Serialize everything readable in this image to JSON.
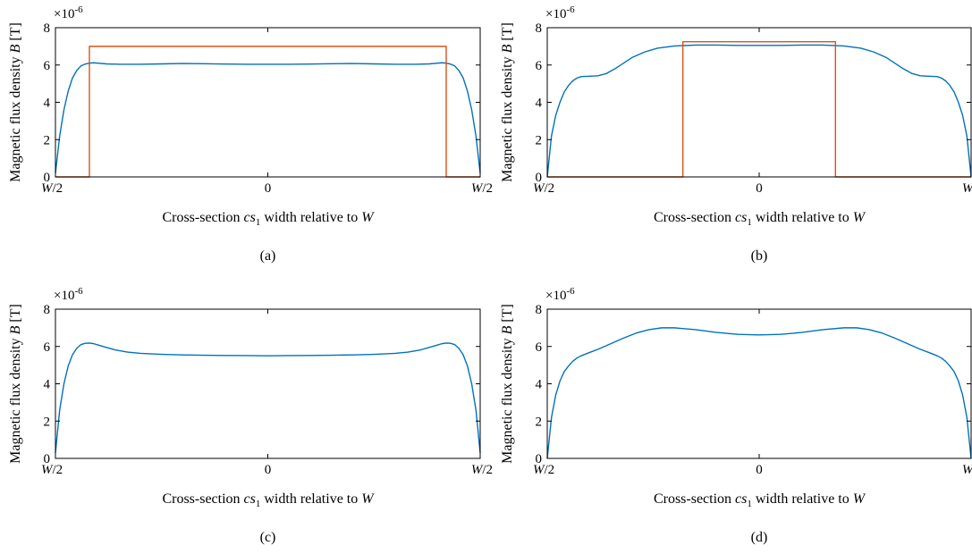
{
  "common": {
    "ylabel_main": "Magnetic flux density ",
    "ylabel_var": "B",
    "ylabel_unit": " [T]",
    "xlabel_pre": "Cross-section ",
    "xlabel_var": "cs",
    "xlabel_sub": "1",
    "xlabel_post": " width relative to ",
    "xlabel_W": "W",
    "exp_base": "×10",
    "exp_power": "-6",
    "xtick_left": "W/2",
    "xtick_mid": "0",
    "xtick_right": "W/2",
    "yticks": [
      "0",
      "2",
      "4",
      "6",
      "8"
    ]
  },
  "colors": {
    "series1": "#0072bd",
    "series2": "#d95319"
  },
  "chart_data": [
    {
      "type": "line",
      "caption": "(a)",
      "xlim": [
        -0.5,
        0.5
      ],
      "ylim": [
        0,
        8
      ],
      "series": [
        {
          "color": "#0072bd",
          "x": [
            -0.5,
            -0.49,
            -0.48,
            -0.47,
            -0.46,
            -0.45,
            -0.44,
            -0.43,
            -0.42,
            -0.41,
            -0.4,
            -0.38,
            -0.35,
            -0.3,
            -0.25,
            -0.2,
            -0.15,
            -0.1,
            -0.05,
            0,
            0.05,
            0.1,
            0.15,
            0.2,
            0.25,
            0.3,
            0.35,
            0.38,
            0.4,
            0.41,
            0.42,
            0.43,
            0.44,
            0.45,
            0.46,
            0.47,
            0.48,
            0.49,
            0.5
          ],
          "y": [
            0.2,
            2.2,
            3.6,
            4.6,
            5.3,
            5.7,
            5.95,
            6.05,
            6.1,
            6.12,
            6.1,
            6.06,
            6.04,
            6.04,
            6.06,
            6.08,
            6.07,
            6.05,
            6.04,
            6.04,
            6.04,
            6.05,
            6.07,
            6.08,
            6.06,
            6.04,
            6.04,
            6.06,
            6.1,
            6.12,
            6.1,
            6.05,
            5.95,
            5.7,
            5.3,
            4.6,
            3.6,
            2.2,
            0.2
          ]
        },
        {
          "color": "#d95319",
          "x": [
            -0.5,
            -0.42,
            -0.42,
            0.42,
            0.42,
            0.5
          ],
          "y": [
            0,
            0,
            7.0,
            7.0,
            0,
            0
          ]
        }
      ]
    },
    {
      "type": "line",
      "caption": "(b)",
      "xlim": [
        -0.5,
        0.5
      ],
      "ylim": [
        0,
        8
      ],
      "series": [
        {
          "color": "#0072bd",
          "x": [
            -0.5,
            -0.49,
            -0.48,
            -0.47,
            -0.46,
            -0.45,
            -0.44,
            -0.43,
            -0.42,
            -0.4,
            -0.38,
            -0.36,
            -0.34,
            -0.32,
            -0.3,
            -0.27,
            -0.24,
            -0.2,
            -0.15,
            -0.1,
            -0.05,
            0,
            0.05,
            0.1,
            0.15,
            0.2,
            0.24,
            0.27,
            0.3,
            0.32,
            0.34,
            0.36,
            0.38,
            0.4,
            0.42,
            0.43,
            0.44,
            0.45,
            0.46,
            0.47,
            0.48,
            0.49,
            0.5
          ],
          "y": [
            0,
            2.2,
            3.3,
            4.0,
            4.55,
            4.9,
            5.15,
            5.3,
            5.38,
            5.4,
            5.42,
            5.55,
            5.8,
            6.1,
            6.4,
            6.7,
            6.9,
            7.02,
            7.07,
            7.07,
            7.05,
            7.05,
            7.05,
            7.07,
            7.07,
            7.02,
            6.9,
            6.7,
            6.4,
            6.1,
            5.8,
            5.55,
            5.42,
            5.4,
            5.38,
            5.3,
            5.15,
            4.9,
            4.55,
            4.0,
            3.3,
            2.2,
            0
          ]
        },
        {
          "color": "#d95319",
          "x": [
            -0.5,
            -0.18,
            -0.18,
            0.18,
            0.18,
            0.5
          ],
          "y": [
            0,
            0,
            7.25,
            7.25,
            0,
            0
          ]
        }
      ]
    },
    {
      "type": "line",
      "caption": "(c)",
      "xlim": [
        -0.5,
        0.5
      ],
      "ylim": [
        0,
        8
      ],
      "series": [
        {
          "color": "#0072bd",
          "x": [
            -0.5,
            -0.49,
            -0.48,
            -0.47,
            -0.46,
            -0.45,
            -0.44,
            -0.43,
            -0.42,
            -0.41,
            -0.4,
            -0.38,
            -0.36,
            -0.33,
            -0.3,
            -0.25,
            -0.2,
            -0.15,
            -0.1,
            -0.05,
            0,
            0.05,
            0.1,
            0.15,
            0.2,
            0.25,
            0.3,
            0.33,
            0.36,
            0.38,
            0.4,
            0.41,
            0.42,
            0.43,
            0.44,
            0.45,
            0.46,
            0.47,
            0.48,
            0.49,
            0.5
          ],
          "y": [
            0.3,
            2.6,
            4.0,
            4.95,
            5.55,
            5.9,
            6.1,
            6.17,
            6.18,
            6.15,
            6.08,
            5.95,
            5.82,
            5.7,
            5.63,
            5.58,
            5.55,
            5.53,
            5.52,
            5.51,
            5.5,
            5.51,
            5.52,
            5.53,
            5.55,
            5.58,
            5.63,
            5.7,
            5.82,
            5.95,
            6.08,
            6.15,
            6.18,
            6.17,
            6.1,
            5.9,
            5.55,
            4.95,
            4.0,
            2.6,
            0.3
          ]
        }
      ]
    },
    {
      "type": "line",
      "caption": "(d)",
      "xlim": [
        -0.5,
        0.5
      ],
      "ylim": [
        0,
        8
      ],
      "series": [
        {
          "color": "#0072bd",
          "x": [
            -0.5,
            -0.49,
            -0.48,
            -0.47,
            -0.46,
            -0.45,
            -0.44,
            -0.43,
            -0.42,
            -0.4,
            -0.38,
            -0.35,
            -0.32,
            -0.29,
            -0.26,
            -0.23,
            -0.2,
            -0.15,
            -0.1,
            -0.05,
            0,
            0.05,
            0.1,
            0.15,
            0.2,
            0.23,
            0.26,
            0.29,
            0.32,
            0.35,
            0.38,
            0.4,
            0.42,
            0.43,
            0.44,
            0.45,
            0.46,
            0.47,
            0.48,
            0.49,
            0.5
          ],
          "y": [
            0,
            2.2,
            3.4,
            4.15,
            4.65,
            4.95,
            5.2,
            5.38,
            5.5,
            5.68,
            5.85,
            6.15,
            6.45,
            6.72,
            6.9,
            7.0,
            7.0,
            6.9,
            6.75,
            6.65,
            6.62,
            6.65,
            6.75,
            6.9,
            7.0,
            7.0,
            6.9,
            6.72,
            6.45,
            6.15,
            5.85,
            5.68,
            5.5,
            5.38,
            5.2,
            4.95,
            4.65,
            4.15,
            3.4,
            2.2,
            0
          ]
        }
      ]
    }
  ]
}
